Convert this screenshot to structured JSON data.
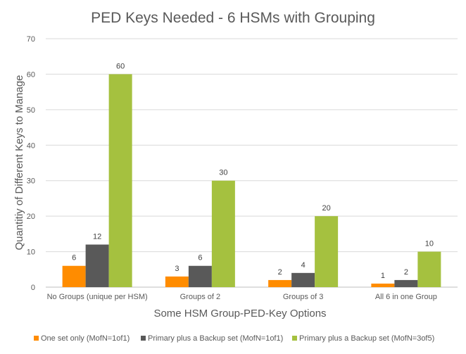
{
  "chart_data": {
    "type": "bar",
    "title": "PED Keys Needed - 6 HSMs with Grouping",
    "xlabel": "Some HSM Group-PED-Key Options",
    "ylabel": "Quantitiy of Different Keys to Manage",
    "ylim": [
      0,
      70
    ],
    "yticks": [
      0,
      10,
      20,
      30,
      40,
      50,
      60,
      70
    ],
    "grid": true,
    "legend_position": "bottom",
    "categories": [
      "No Groups (unique per HSM)",
      "Groups of 2",
      "Groups of 3",
      "All 6 in one Group"
    ],
    "series": [
      {
        "name": "One set only (MofN=1of1)",
        "color": "#ff8c00",
        "values": [
          6,
          3,
          2,
          1
        ]
      },
      {
        "name": "Primary plus a Backup set (MofN=1of1)",
        "color": "#595959",
        "values": [
          12,
          6,
          4,
          2
        ]
      },
      {
        "name": "Primary plus a Backup set (MofN=3of5)",
        "color": "#a5c13f",
        "values": [
          60,
          30,
          20,
          10
        ]
      }
    ]
  }
}
